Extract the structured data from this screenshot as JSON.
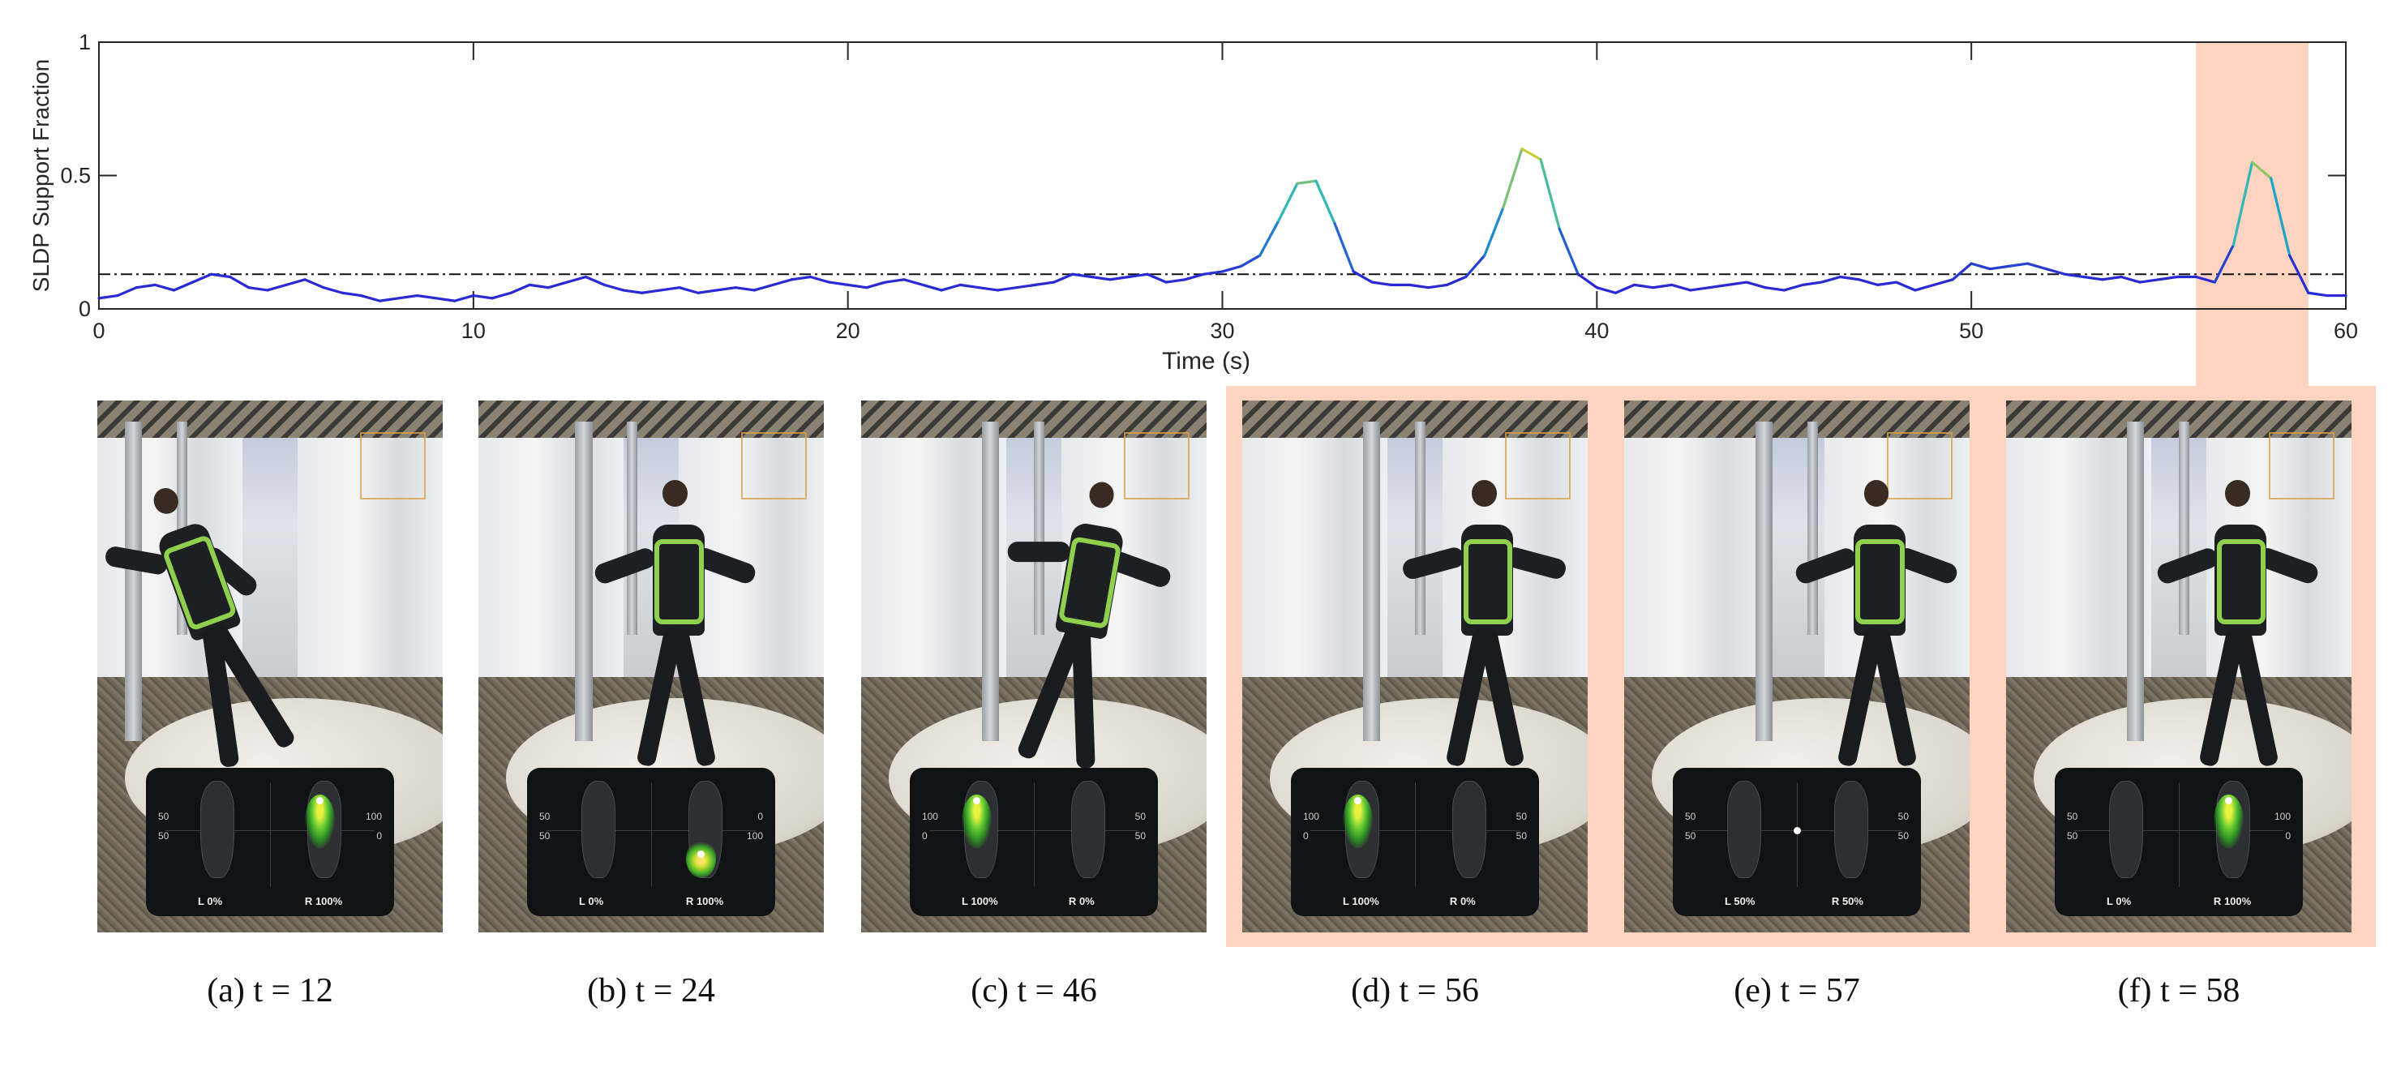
{
  "chart_data": {
    "type": "line",
    "ylabel": "SLDP Support Fraction",
    "xlabel": "Time (s)",
    "xlim": [
      0,
      60
    ],
    "ylim": [
      0,
      1
    ],
    "xticks": [
      0,
      10,
      20,
      30,
      40,
      50,
      60
    ],
    "yticks": [
      0,
      0.5,
      1
    ],
    "threshold": 0.13,
    "highlight_range": [
      56,
      59
    ],
    "colors": {
      "low": "#2a2ad4",
      "mid": "#18b4c8",
      "high": "#e8d020",
      "threshold": "#111111",
      "highlight": "#fdd4bf"
    },
    "series": [
      {
        "x": [
          0,
          0.5,
          1,
          1.5,
          2,
          2.5,
          3,
          3.5,
          4,
          4.5,
          5,
          5.5,
          6,
          6.5,
          7,
          7.5,
          8,
          8.5,
          9,
          9.5,
          10,
          10.5,
          11,
          11.5,
          12,
          12.5,
          13,
          13.5,
          14,
          14.5,
          15,
          15.5,
          16,
          16.5,
          17,
          17.5,
          18,
          18.5,
          19,
          19.5,
          20,
          20.5,
          21,
          21.5,
          22,
          22.5,
          23,
          23.5,
          24,
          24.5,
          25,
          25.5,
          26,
          26.5,
          27,
          27.5,
          28,
          28.5,
          29,
          29.5,
          30,
          30.5,
          31,
          31.5,
          32,
          32.5,
          33,
          33.5,
          34,
          34.5,
          35,
          35.5,
          36,
          36.5,
          37,
          37.5,
          38,
          38.5,
          39,
          39.5,
          40,
          40.5,
          41,
          41.5,
          42,
          42.5,
          43,
          43.5,
          44,
          44.5,
          45,
          45.5,
          46,
          46.5,
          47,
          47.5,
          48,
          48.5,
          49,
          49.5,
          50,
          50.5,
          51,
          51.5,
          52,
          52.5,
          53,
          53.5,
          54,
          54.5,
          55,
          55.5,
          56,
          56.5,
          57,
          57.5,
          58,
          58.5,
          59,
          59.5,
          60
        ],
        "y": [
          0.04,
          0.05,
          0.08,
          0.09,
          0.07,
          0.1,
          0.13,
          0.12,
          0.08,
          0.07,
          0.09,
          0.11,
          0.08,
          0.06,
          0.05,
          0.03,
          0.04,
          0.05,
          0.04,
          0.03,
          0.05,
          0.04,
          0.06,
          0.09,
          0.08,
          0.1,
          0.12,
          0.09,
          0.07,
          0.06,
          0.07,
          0.08,
          0.06,
          0.07,
          0.08,
          0.07,
          0.09,
          0.11,
          0.12,
          0.1,
          0.09,
          0.08,
          0.1,
          0.11,
          0.09,
          0.07,
          0.09,
          0.08,
          0.07,
          0.08,
          0.09,
          0.1,
          0.13,
          0.12,
          0.11,
          0.12,
          0.13,
          0.1,
          0.11,
          0.13,
          0.14,
          0.16,
          0.2,
          0.33,
          0.47,
          0.48,
          0.32,
          0.14,
          0.1,
          0.09,
          0.09,
          0.08,
          0.09,
          0.12,
          0.2,
          0.38,
          0.6,
          0.56,
          0.3,
          0.13,
          0.08,
          0.06,
          0.09,
          0.08,
          0.09,
          0.07,
          0.08,
          0.09,
          0.1,
          0.08,
          0.07,
          0.09,
          0.1,
          0.12,
          0.11,
          0.09,
          0.1,
          0.07,
          0.09,
          0.11,
          0.17,
          0.15,
          0.16,
          0.17,
          0.15,
          0.13,
          0.12,
          0.11,
          0.12,
          0.1,
          0.11,
          0.12,
          0.12,
          0.1,
          0.24,
          0.55,
          0.49,
          0.2,
          0.06,
          0.05,
          0.05
        ]
      }
    ]
  },
  "panels": [
    {
      "caption": "(a) t = 12",
      "left_pct": "0%",
      "right_pct": "100%",
      "left_top": "50",
      "left_bot": "50",
      "right_top": "100",
      "right_bot": "0",
      "cop_side": "right",
      "cop_pos": "top"
    },
    {
      "caption": "(b) t = 24",
      "left_pct": "0%",
      "right_pct": "100%",
      "left_top": "50",
      "left_bot": "50",
      "right_top": "0",
      "right_bot": "100",
      "cop_side": "right",
      "cop_pos": "bottom"
    },
    {
      "caption": "(c) t = 46",
      "left_pct": "100%",
      "right_pct": "0%",
      "left_top": "100",
      "left_bot": "0",
      "right_top": "50",
      "right_bot": "50",
      "cop_side": "left",
      "cop_pos": "top"
    },
    {
      "caption": "(d) t = 56",
      "left_pct": "100%",
      "right_pct": "0%",
      "left_top": "100",
      "left_bot": "0",
      "right_top": "50",
      "right_bot": "50",
      "cop_side": "left",
      "cop_pos": "top"
    },
    {
      "caption": "(e) t = 57",
      "left_pct": "50%",
      "right_pct": "50%",
      "left_top": "50",
      "left_bot": "50",
      "right_top": "50",
      "right_bot": "50",
      "cop_side": "center",
      "cop_pos": "center"
    },
    {
      "caption": "(f) t = 58",
      "left_pct": "0%",
      "right_pct": "100%",
      "left_top": "50",
      "left_bot": "50",
      "right_top": "100",
      "right_bot": "0",
      "cop_side": "right",
      "cop_pos": "top"
    }
  ],
  "inset_labels": {
    "left": "L",
    "right": "R"
  }
}
